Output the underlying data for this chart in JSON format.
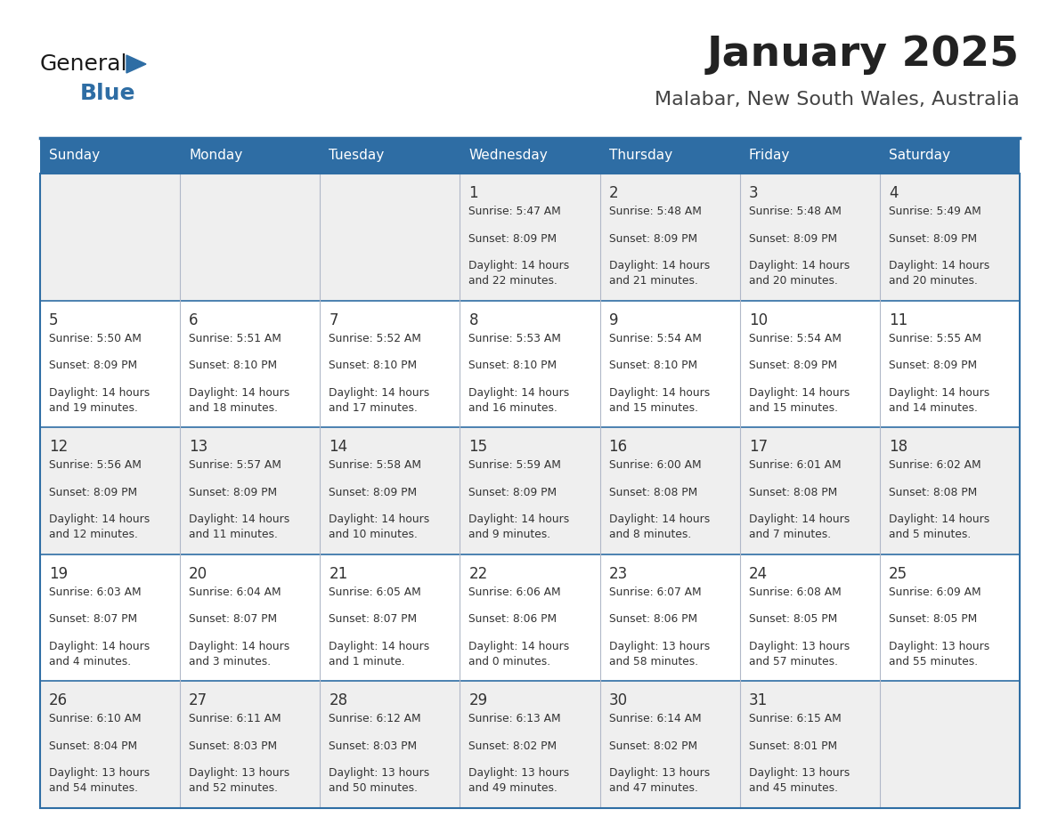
{
  "title": "January 2025",
  "subtitle": "Malabar, New South Wales, Australia",
  "header_bg_color": "#2E6DA4",
  "header_text_color": "#FFFFFF",
  "cell_bg_even": "#EFEFEF",
  "cell_bg_odd": "#FFFFFF",
  "cell_text_color": "#333333",
  "day_number_color": "#333333",
  "grid_line_color": "#B0B8C8",
  "days_of_week": [
    "Sunday",
    "Monday",
    "Tuesday",
    "Wednesday",
    "Thursday",
    "Friday",
    "Saturday"
  ],
  "weeks": [
    [
      {
        "day": "",
        "sunrise": "",
        "sunset": "",
        "daylight": ""
      },
      {
        "day": "",
        "sunrise": "",
        "sunset": "",
        "daylight": ""
      },
      {
        "day": "",
        "sunrise": "",
        "sunset": "",
        "daylight": ""
      },
      {
        "day": "1",
        "sunrise": "5:47 AM",
        "sunset": "8:09 PM",
        "daylight": "14 hours\nand 22 minutes."
      },
      {
        "day": "2",
        "sunrise": "5:48 AM",
        "sunset": "8:09 PM",
        "daylight": "14 hours\nand 21 minutes."
      },
      {
        "day": "3",
        "sunrise": "5:48 AM",
        "sunset": "8:09 PM",
        "daylight": "14 hours\nand 20 minutes."
      },
      {
        "day": "4",
        "sunrise": "5:49 AM",
        "sunset": "8:09 PM",
        "daylight": "14 hours\nand 20 minutes."
      }
    ],
    [
      {
        "day": "5",
        "sunrise": "5:50 AM",
        "sunset": "8:09 PM",
        "daylight": "14 hours\nand 19 minutes."
      },
      {
        "day": "6",
        "sunrise": "5:51 AM",
        "sunset": "8:10 PM",
        "daylight": "14 hours\nand 18 minutes."
      },
      {
        "day": "7",
        "sunrise": "5:52 AM",
        "sunset": "8:10 PM",
        "daylight": "14 hours\nand 17 minutes."
      },
      {
        "day": "8",
        "sunrise": "5:53 AM",
        "sunset": "8:10 PM",
        "daylight": "14 hours\nand 16 minutes."
      },
      {
        "day": "9",
        "sunrise": "5:54 AM",
        "sunset": "8:10 PM",
        "daylight": "14 hours\nand 15 minutes."
      },
      {
        "day": "10",
        "sunrise": "5:54 AM",
        "sunset": "8:09 PM",
        "daylight": "14 hours\nand 15 minutes."
      },
      {
        "day": "11",
        "sunrise": "5:55 AM",
        "sunset": "8:09 PM",
        "daylight": "14 hours\nand 14 minutes."
      }
    ],
    [
      {
        "day": "12",
        "sunrise": "5:56 AM",
        "sunset": "8:09 PM",
        "daylight": "14 hours\nand 12 minutes."
      },
      {
        "day": "13",
        "sunrise": "5:57 AM",
        "sunset": "8:09 PM",
        "daylight": "14 hours\nand 11 minutes."
      },
      {
        "day": "14",
        "sunrise": "5:58 AM",
        "sunset": "8:09 PM",
        "daylight": "14 hours\nand 10 minutes."
      },
      {
        "day": "15",
        "sunrise": "5:59 AM",
        "sunset": "8:09 PM",
        "daylight": "14 hours\nand 9 minutes."
      },
      {
        "day": "16",
        "sunrise": "6:00 AM",
        "sunset": "8:08 PM",
        "daylight": "14 hours\nand 8 minutes."
      },
      {
        "day": "17",
        "sunrise": "6:01 AM",
        "sunset": "8:08 PM",
        "daylight": "14 hours\nand 7 minutes."
      },
      {
        "day": "18",
        "sunrise": "6:02 AM",
        "sunset": "8:08 PM",
        "daylight": "14 hours\nand 5 minutes."
      }
    ],
    [
      {
        "day": "19",
        "sunrise": "6:03 AM",
        "sunset": "8:07 PM",
        "daylight": "14 hours\nand 4 minutes."
      },
      {
        "day": "20",
        "sunrise": "6:04 AM",
        "sunset": "8:07 PM",
        "daylight": "14 hours\nand 3 minutes."
      },
      {
        "day": "21",
        "sunrise": "6:05 AM",
        "sunset": "8:07 PM",
        "daylight": "14 hours\nand 1 minute."
      },
      {
        "day": "22",
        "sunrise": "6:06 AM",
        "sunset": "8:06 PM",
        "daylight": "14 hours\nand 0 minutes."
      },
      {
        "day": "23",
        "sunrise": "6:07 AM",
        "sunset": "8:06 PM",
        "daylight": "13 hours\nand 58 minutes."
      },
      {
        "day": "24",
        "sunrise": "6:08 AM",
        "sunset": "8:05 PM",
        "daylight": "13 hours\nand 57 minutes."
      },
      {
        "day": "25",
        "sunrise": "6:09 AM",
        "sunset": "8:05 PM",
        "daylight": "13 hours\nand 55 minutes."
      }
    ],
    [
      {
        "day": "26",
        "sunrise": "6:10 AM",
        "sunset": "8:04 PM",
        "daylight": "13 hours\nand 54 minutes."
      },
      {
        "day": "27",
        "sunrise": "6:11 AM",
        "sunset": "8:03 PM",
        "daylight": "13 hours\nand 52 minutes."
      },
      {
        "day": "28",
        "sunrise": "6:12 AM",
        "sunset": "8:03 PM",
        "daylight": "13 hours\nand 50 minutes."
      },
      {
        "day": "29",
        "sunrise": "6:13 AM",
        "sunset": "8:02 PM",
        "daylight": "13 hours\nand 49 minutes."
      },
      {
        "day": "30",
        "sunrise": "6:14 AM",
        "sunset": "8:02 PM",
        "daylight": "13 hours\nand 47 minutes."
      },
      {
        "day": "31",
        "sunrise": "6:15 AM",
        "sunset": "8:01 PM",
        "daylight": "13 hours\nand 45 minutes."
      },
      {
        "day": "",
        "sunrise": "",
        "sunset": "",
        "daylight": ""
      }
    ]
  ],
  "logo_general_color": "#1a1a1a",
  "logo_blue_color": "#2E6DA4",
  "title_color": "#222222",
  "subtitle_color": "#444444",
  "fig_width": 11.88,
  "fig_height": 9.18,
  "dpi": 100
}
